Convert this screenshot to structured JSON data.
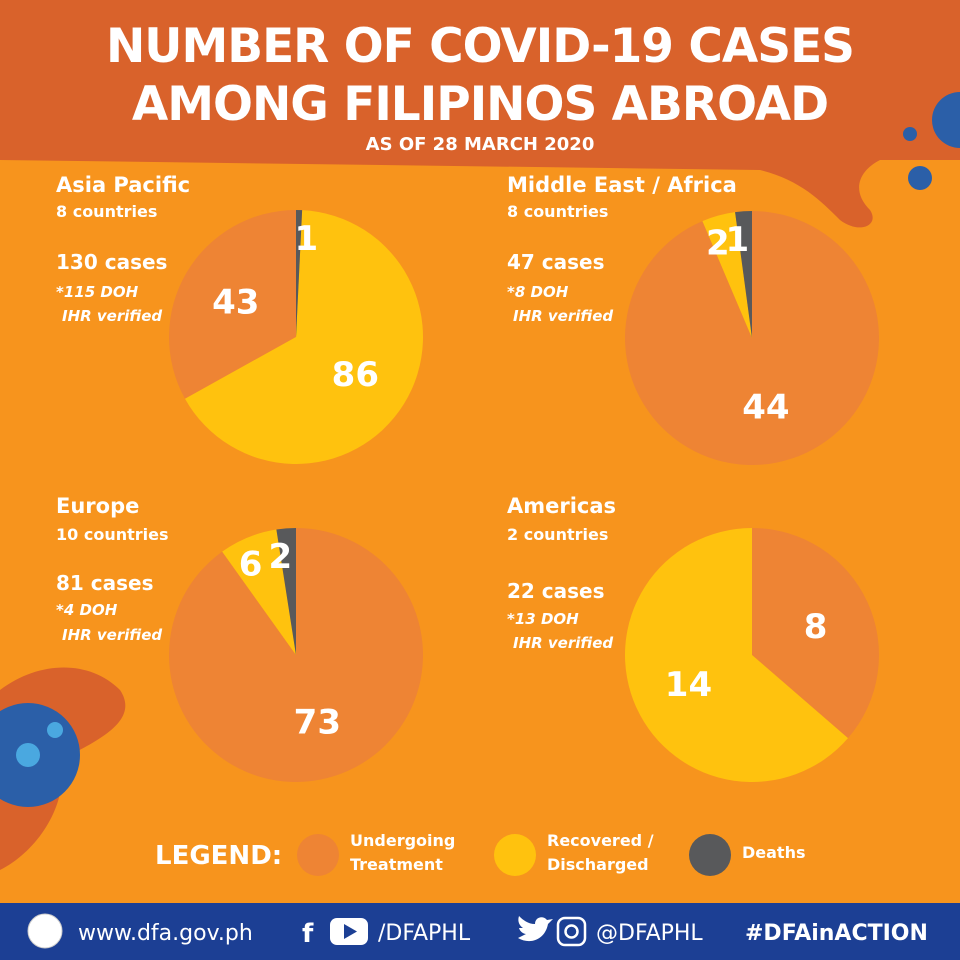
{
  "header": {
    "title": [
      "NUMBER OF COVID-19 CASES",
      "AMONG FILIPINOS ABROAD"
    ],
    "subtitle": "AS OF 28 MARCH 2020"
  },
  "chart_data": [
    {
      "type": "pie",
      "title": "Asia Pacific",
      "subtitle": "8 countries",
      "cases": "130 cases",
      "note": [
        "*115 DOH",
        "IHR verified"
      ],
      "values": [
        43,
        86,
        1
      ],
      "colors": [
        "#ee8434",
        "#ffc20e",
        "#58595b"
      ],
      "direction": "counterclockwise"
    },
    {
      "type": "pie",
      "title": "Middle East / Africa",
      "subtitle": "8 countries",
      "cases": "47 cases",
      "note": [
        "*8 DOH",
        "IHR verified"
      ],
      "values": [
        44,
        2,
        1
      ],
      "colors": [
        "#ee8434",
        "#ffc20e",
        "#58595b"
      ],
      "direction": "clockwise"
    },
    {
      "type": "pie",
      "title": "Europe",
      "subtitle": "10 countries",
      "cases": "81 cases",
      "note": [
        "*4 DOH",
        "IHR verified"
      ],
      "values": [
        73,
        6,
        2
      ],
      "colors": [
        "#ee8434",
        "#ffc20e",
        "#58595b"
      ],
      "direction": "clockwise"
    },
    {
      "type": "pie",
      "title": "Americas",
      "subtitle": "2 countries",
      "cases": "22 cases",
      "note": [
        "*13 DOH",
        "IHR verified"
      ],
      "values": [
        8,
        14
      ],
      "colors": [
        "#ee8434",
        "#ffc20e"
      ],
      "direction": "clockwise"
    }
  ],
  "legend": {
    "title": "LEGEND:",
    "items": [
      {
        "label": [
          "Undergoing",
          "Treatment"
        ],
        "color": "#ee8434"
      },
      {
        "label": [
          "Recovered /",
          "Discharged"
        ],
        "color": "#ffc20e"
      },
      {
        "label": [
          "Deaths"
        ],
        "color": "#58595b"
      }
    ]
  },
  "footer": {
    "website": "www.dfa.gov.ph",
    "facebook_youtube": "/DFAPHL",
    "twitter_instagram": "@DFAPHL",
    "hashtag": "#DFAinACTION"
  }
}
